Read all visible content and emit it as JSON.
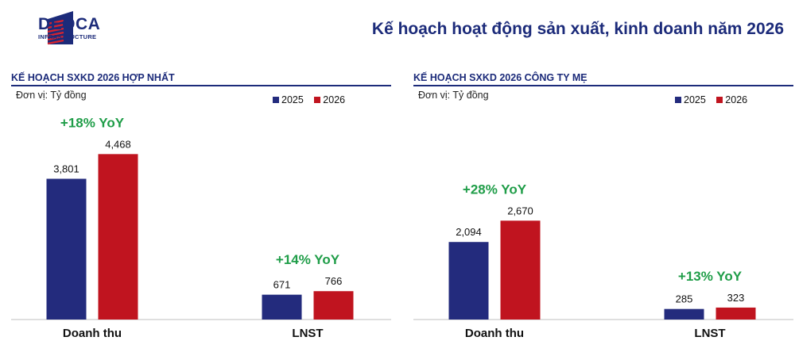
{
  "header": {
    "brand_name": "DEOCA",
    "brand_sub": "INFRASTRUCTURE",
    "title": "Kế hoạch hoạt động sản xuất, kinh doanh năm 2026"
  },
  "colors": {
    "brand": "#1c2b7a",
    "s2025": "#232b7d",
    "s2026": "#c0141f",
    "yoy": "#1f9d48",
    "logo_red": "#d9232d"
  },
  "chart_data": [
    {
      "type": "bar",
      "title": "KẾ HOẠCH SXKD 2026 HỢP NHẤT",
      "unit": "Đơn vị: Tỷ đồng",
      "categories": [
        "Doanh thu",
        "LNST"
      ],
      "series": [
        {
          "name": "2025",
          "values": [
            3801,
            671
          ],
          "labels": [
            "3,801",
            "671"
          ]
        },
        {
          "name": "2026",
          "values": [
            4468,
            766
          ],
          "labels": [
            "4,468",
            "766"
          ]
        }
      ],
      "annotations": [
        "+18% YoY",
        "+14% YoY"
      ],
      "legend_position": "top-right"
    },
    {
      "type": "bar",
      "title": "KẾ HOẠCH SXKD 2026 CÔNG TY MẸ",
      "unit": "Đơn vị: Tỷ đồng",
      "categories": [
        "Doanh thu",
        "LNST"
      ],
      "series": [
        {
          "name": "2025",
          "values": [
            2094,
            285
          ],
          "labels": [
            "2,094",
            "285"
          ]
        },
        {
          "name": "2026",
          "values": [
            2670,
            323
          ],
          "labels": [
            "2,670",
            "323"
          ]
        }
      ],
      "annotations": [
        "+28% YoY",
        "+13% YoY"
      ],
      "legend_position": "top-right"
    }
  ]
}
